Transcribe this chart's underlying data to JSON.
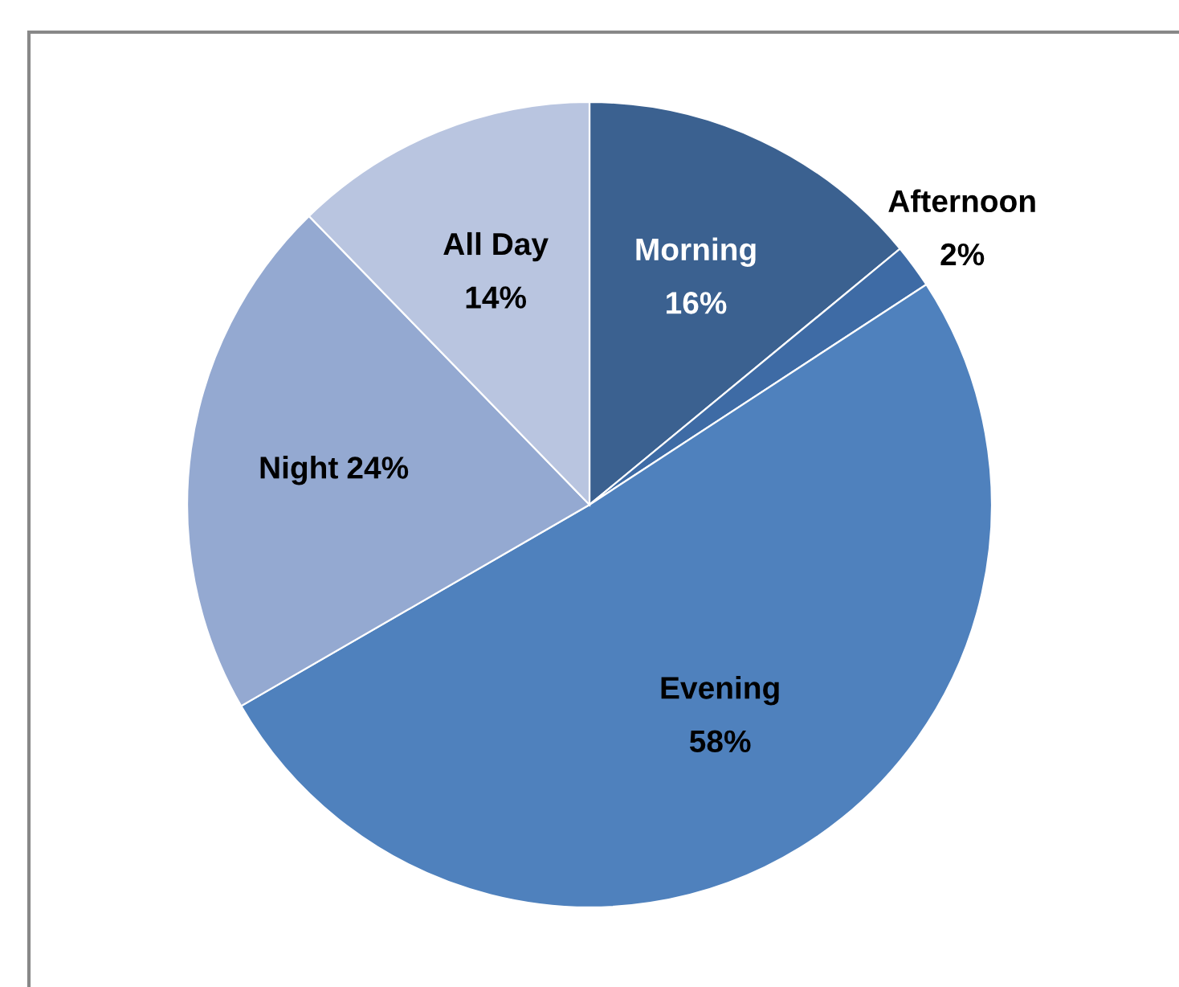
{
  "chart_data": {
    "type": "pie",
    "categories": [
      "Morning",
      "Afternoon",
      "Evening",
      "Night",
      "All Day"
    ],
    "values": [
      16,
      2,
      58,
      24,
      14
    ],
    "value_labels": [
      "16%",
      "2%",
      "58%",
      "24%",
      "14%"
    ],
    "colors": [
      "#3b6190",
      "#3e6ba5",
      "#4f81bd",
      "#94a9d1",
      "#b9c5e0"
    ]
  }
}
